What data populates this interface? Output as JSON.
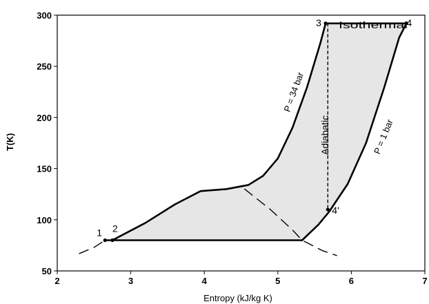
{
  "chart_data": {
    "type": "line",
    "title": "",
    "xlabel": "Entropy (kJ/kg K)",
    "ylabel": "T(K)",
    "xlim": [
      2,
      7
    ],
    "ylim": [
      50,
      300
    ],
    "x_ticks": [
      2,
      3,
      4,
      5,
      6,
      7
    ],
    "x_tick_labels": [
      "2",
      "3",
      "4",
      "5",
      "6",
      "7"
    ],
    "y_ticks": [
      50,
      100,
      150,
      200,
      250,
      300
    ],
    "y_tick_labels": [
      "50",
      "100",
      "150",
      "200",
      "250",
      "300"
    ],
    "grid": false,
    "legend": "none",
    "fill_color": "#e6e6e6",
    "series": [
      {
        "label": "P = 34 bar",
        "style": "solid",
        "points": [
          [
            2.75,
            80
          ],
          [
            3.2,
            97
          ],
          [
            3.6,
            115
          ],
          [
            3.95,
            128
          ],
          [
            4.3,
            130
          ],
          [
            4.6,
            134
          ],
          [
            4.8,
            143
          ],
          [
            5.0,
            160
          ],
          [
            5.2,
            190
          ],
          [
            5.4,
            230
          ],
          [
            5.58,
            273
          ],
          [
            5.65,
            292
          ]
        ]
      },
      {
        "label": "P = 1 bar",
        "style": "solid",
        "points": [
          [
            5.33,
            80
          ],
          [
            5.55,
            95
          ],
          [
            5.7,
            108
          ],
          [
            5.95,
            135
          ],
          [
            6.2,
            175
          ],
          [
            6.45,
            230
          ],
          [
            6.65,
            278
          ],
          [
            6.75,
            292
          ]
        ]
      },
      {
        "label": "",
        "style": "solid",
        "points": [
          [
            2.65,
            80
          ],
          [
            5.33,
            80
          ]
        ]
      },
      {
        "label": "Isothermal",
        "style": "solid",
        "points": [
          [
            5.65,
            292
          ],
          [
            6.75,
            292
          ]
        ]
      },
      {
        "label": "Adiabatic",
        "style": "dashed",
        "points": [
          [
            5.68,
            292
          ],
          [
            5.68,
            110
          ]
        ]
      },
      {
        "label": "",
        "style": "dashed",
        "points": [
          [
            4.55,
            130
          ],
          [
            4.9,
            110
          ],
          [
            5.2,
            90
          ],
          [
            5.33,
            80
          ],
          [
            5.6,
            70
          ],
          [
            5.8,
            65
          ]
        ]
      },
      {
        "label": "",
        "style": "dashed",
        "points": [
          [
            2.3,
            67
          ],
          [
            2.5,
            73
          ],
          [
            2.65,
            80
          ]
        ]
      }
    ],
    "points": [
      {
        "label": "1",
        "x": 2.65,
        "y": 80
      },
      {
        "label": "2",
        "x": 2.75,
        "y": 80
      },
      {
        "label": "3",
        "x": 5.65,
        "y": 292
      },
      {
        "label": "4",
        "x": 6.75,
        "y": 292
      },
      {
        "label": "4'",
        "x": 5.68,
        "y": 110
      }
    ],
    "annotations": [
      "Isothermal",
      "Adiabatic",
      "P = 34 bar",
      "P = 1 bar"
    ]
  }
}
